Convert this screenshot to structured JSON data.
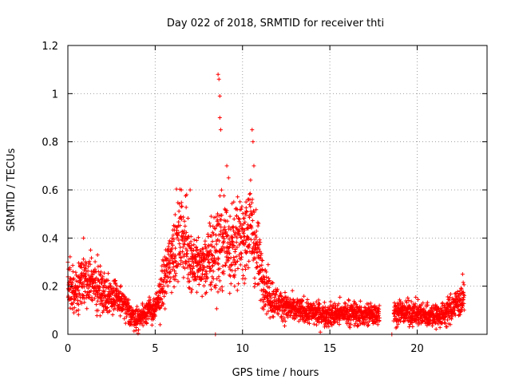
{
  "chart_data": {
    "type": "scatter",
    "title": "Day 022 of 2018, SRMTID for receiver thti",
    "xlabel": "GPS time / hours",
    "ylabel": "SRMTID / TECUs",
    "xlim": [
      0,
      24
    ],
    "ylim": [
      0,
      1.2
    ],
    "xticks": [
      0,
      5,
      10,
      15,
      20
    ],
    "yticks": [
      0,
      0.2,
      0.4,
      0.6,
      0.8,
      1,
      1.2
    ],
    "xtick_labels": [
      "0",
      "5",
      "10",
      "15",
      "20"
    ],
    "ytick_labels": [
      "0",
      "0.2",
      "0.4",
      "0.6",
      "0.8",
      "1",
      "1.2"
    ],
    "grid": true,
    "marker": "+",
    "color": "#ff0000",
    "profile": [
      [
        0.0,
        0.2,
        0.06
      ],
      [
        0.5,
        0.17,
        0.05
      ],
      [
        1.0,
        0.25,
        0.07
      ],
      [
        1.5,
        0.2,
        0.06
      ],
      [
        2.0,
        0.18,
        0.05
      ],
      [
        2.5,
        0.16,
        0.05
      ],
      [
        3.0,
        0.14,
        0.04
      ],
      [
        3.5,
        0.09,
        0.03
      ],
      [
        4.0,
        0.06,
        0.03
      ],
      [
        4.5,
        0.1,
        0.03
      ],
      [
        5.0,
        0.1,
        0.03
      ],
      [
        5.5,
        0.22,
        0.07
      ],
      [
        6.0,
        0.35,
        0.09
      ],
      [
        6.5,
        0.42,
        0.1
      ],
      [
        7.0,
        0.32,
        0.08
      ],
      [
        7.5,
        0.28,
        0.07
      ],
      [
        8.0,
        0.3,
        0.08
      ],
      [
        8.5,
        0.35,
        0.12
      ],
      [
        9.0,
        0.4,
        0.12
      ],
      [
        9.5,
        0.36,
        0.1
      ],
      [
        10.0,
        0.4,
        0.1
      ],
      [
        10.5,
        0.45,
        0.12
      ],
      [
        11.0,
        0.28,
        0.08
      ],
      [
        11.5,
        0.16,
        0.05
      ],
      [
        12.0,
        0.13,
        0.04
      ],
      [
        13.0,
        0.1,
        0.03
      ],
      [
        14.0,
        0.09,
        0.03
      ],
      [
        15.0,
        0.08,
        0.03
      ],
      [
        16.0,
        0.09,
        0.03
      ],
      [
        17.0,
        0.08,
        0.03
      ],
      [
        17.8,
        0.09,
        0.03
      ],
      [
        18.7,
        0.09,
        0.03
      ],
      [
        19.5,
        0.09,
        0.03
      ],
      [
        20.5,
        0.08,
        0.03
      ],
      [
        21.5,
        0.08,
        0.03
      ],
      [
        22.3,
        0.13,
        0.04
      ],
      [
        22.7,
        0.15,
        0.04
      ]
    ],
    "gaps": [
      [
        17.85,
        18.65
      ]
    ],
    "spikes": [
      [
        8.6,
        1.08
      ],
      [
        8.65,
        1.06
      ],
      [
        8.7,
        0.9
      ],
      [
        8.75,
        0.85
      ],
      [
        8.7,
        0.99
      ],
      [
        9.1,
        0.7
      ],
      [
        9.2,
        0.65
      ],
      [
        10.55,
        0.85
      ],
      [
        10.6,
        0.8
      ],
      [
        10.65,
        0.7
      ],
      [
        6.5,
        0.6
      ],
      [
        6.8,
        0.58
      ],
      [
        7.0,
        0.6
      ],
      [
        9.5,
        0.55
      ],
      [
        10.3,
        0.56
      ],
      [
        0.9,
        0.4
      ],
      [
        1.3,
        0.35
      ],
      [
        1.7,
        0.33
      ],
      [
        8.2,
        0.49
      ],
      [
        22.6,
        0.25
      ]
    ],
    "isolated_points": [
      [
        8.45,
        0.0
      ],
      [
        18.55,
        0.0
      ]
    ]
  }
}
